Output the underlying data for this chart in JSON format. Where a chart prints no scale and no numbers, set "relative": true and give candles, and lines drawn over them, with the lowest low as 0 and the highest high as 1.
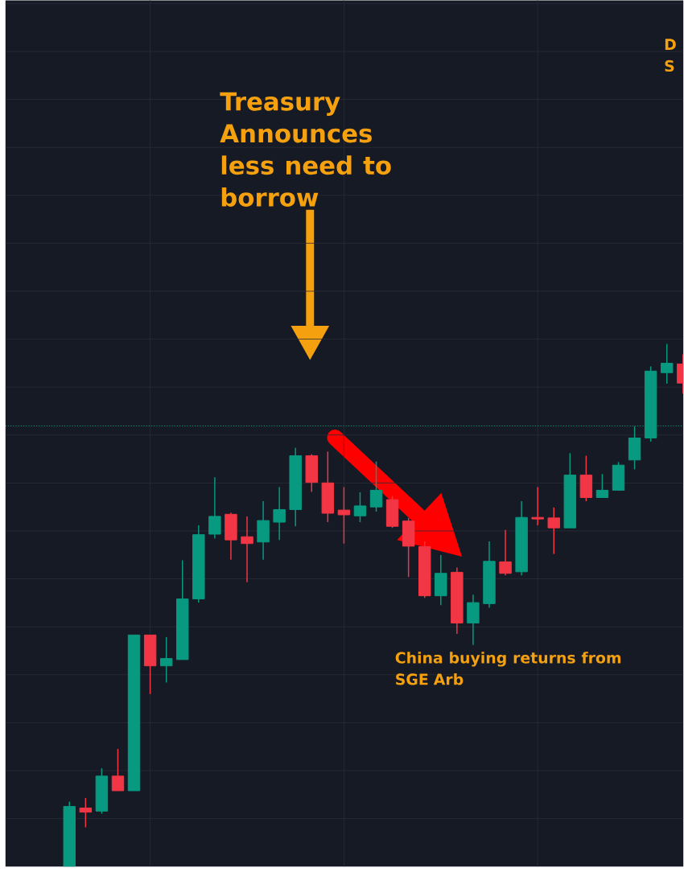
{
  "chart_data": {
    "type": "candlestick",
    "relative": true,
    "grid": true,
    "categories": [
      null,
      null,
      null,
      null,
      null,
      null,
      null,
      null,
      null,
      null,
      null,
      null,
      null,
      null,
      null,
      null,
      null,
      null,
      null,
      null,
      null,
      null,
      null,
      null,
      null,
      null,
      null,
      null,
      null,
      null,
      null,
      null,
      null,
      null,
      null,
      null,
      null,
      null,
      null
    ],
    "ohlc": [
      [
        0,
        0.124,
        0,
        0.115
      ],
      [
        0.112,
        0.131,
        0.075,
        0.104
      ],
      [
        0.106,
        0.188,
        0.101,
        0.173
      ],
      [
        0.173,
        0.225,
        0.145,
        0.145
      ],
      [
        0.145,
        0.443,
        0.145,
        0.443
      ],
      [
        0.443,
        0.443,
        0.33,
        0.384
      ],
      [
        0.384,
        0.439,
        0.352,
        0.398
      ],
      [
        0.396,
        0.586,
        0.396,
        0.512
      ],
      [
        0.512,
        0.653,
        0.505,
        0.635
      ],
      [
        0.636,
        0.745,
        0.628,
        0.67
      ],
      [
        0.674,
        0.677,
        0.587,
        0.625
      ],
      [
        0.631,
        0.67,
        0.544,
        0.618
      ],
      [
        0.621,
        0.699,
        0.587,
        0.662
      ],
      [
        0.659,
        0.726,
        0.625,
        0.683
      ],
      [
        0.683,
        0.801,
        0.651,
        0.786
      ],
      [
        0.786,
        0.789,
        0.717,
        0.735
      ],
      [
        0.734,
        0.794,
        0.659,
        0.676
      ],
      [
        0.682,
        0.726,
        0.618,
        0.673
      ],
      [
        0.671,
        0.716,
        0.659,
        0.69
      ],
      [
        0.688,
        0.775,
        0.679,
        0.72
      ],
      [
        0.702,
        0.709,
        0.648,
        0.651
      ],
      [
        0.661,
        0.667,
        0.554,
        0.613
      ],
      [
        0.612,
        0.622,
        0.514,
        0.518
      ],
      [
        0.518,
        0.596,
        0.5,
        0.561
      ],
      [
        0.563,
        0.572,
        0.445,
        0.466
      ],
      [
        0.466,
        0.52,
        0.424,
        0.505
      ],
      [
        0.503,
        0.622,
        0.495,
        0.584
      ],
      [
        0.583,
        0.644,
        0.557,
        0.561
      ],
      [
        0.564,
        0.699,
        0.557,
        0.668
      ],
      [
        0.668,
        0.726,
        0.653,
        0.665
      ],
      [
        0.667,
        0.687,
        0.598,
        0.648
      ],
      [
        0.648,
        0.791,
        0.648,
        0.749
      ],
      [
        0.749,
        0.786,
        0.699,
        0.706
      ],
      [
        0.706,
        0.751,
        0.706,
        0.72
      ],
      [
        0.72,
        0.774,
        0.72,
        0.768
      ],
      [
        0.778,
        0.842,
        0.76,
        0.82
      ],
      [
        0.82,
        0.957,
        0.813,
        0.948
      ],
      [
        0.945,
        1,
        0.924,
        0.963
      ],
      [
        0.962,
        0.98,
        0.905,
        0.925
      ]
    ],
    "colors": [
      "#089981",
      "#f23645",
      "#089981",
      "#f23645",
      "#089981",
      "#f23645",
      "#089981",
      "#089981",
      "#089981",
      "#089981",
      "#f23645",
      "#f23645",
      "#089981",
      "#089981",
      "#089981",
      "#f23645",
      "#f23645",
      "#f23645",
      "#089981",
      "#089981",
      "#f23645",
      "#f23645",
      "#f23645",
      "#089981",
      "#f23645",
      "#089981",
      "#089981",
      "#f23645",
      "#089981",
      "#f23645",
      "#f23645",
      "#089981",
      "#f23645",
      "#089981",
      "#089981",
      "#089981",
      "#089981",
      "#089981",
      "#f23645"
    ],
    "ref_lines": [
      {
        "axis": "y",
        "value": 0.843,
        "color": "#089981",
        "line_style": "dotted"
      }
    ],
    "annotations": [
      "Treasury Announces less need to borrow",
      "China buying returns from SGE Arb",
      "D S"
    ]
  }
}
